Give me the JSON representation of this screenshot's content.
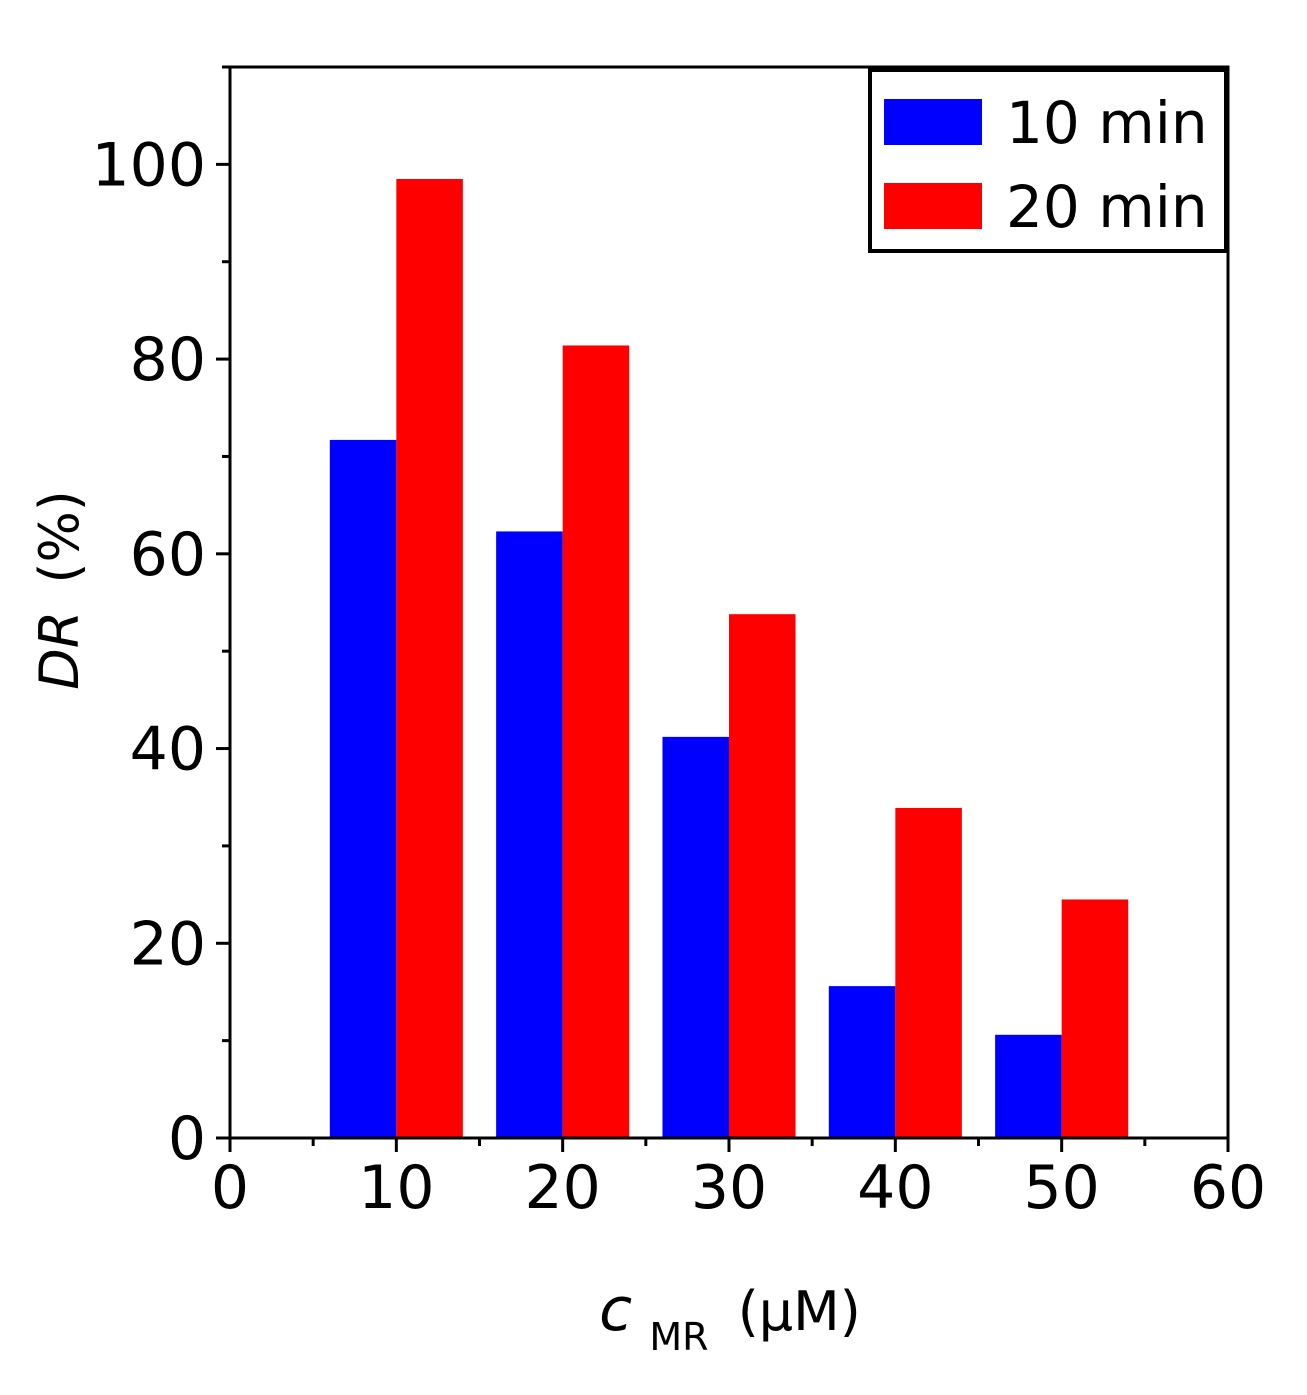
{
  "chart_data": {
    "type": "bar",
    "x_tick_labels": [
      "0",
      "10",
      "20",
      "30",
      "40",
      "50",
      "60"
    ],
    "x_ticks": [
      0,
      10,
      20,
      30,
      40,
      50,
      60
    ],
    "y_tick_labels": [
      "0",
      "20",
      "40",
      "60",
      "80",
      "100"
    ],
    "y_ticks": [
      0,
      20,
      40,
      60,
      80,
      100
    ],
    "xlim": [
      0,
      60
    ],
    "ylim": [
      0,
      110
    ],
    "categories": [
      10,
      20,
      30,
      40,
      50
    ],
    "series": [
      {
        "name": "10 min",
        "color": "#0000ff",
        "values": [
          71.7,
          62.3,
          41.2,
          15.6,
          10.6
        ]
      },
      {
        "name": "20 min",
        "color": "#ff0000",
        "values": [
          98.5,
          81.4,
          53.8,
          33.9,
          24.5
        ]
      }
    ],
    "xlabel": {
      "symbol": "c",
      "subscript": "MR",
      "unit": "(μM)"
    },
    "ylabel": {
      "symbol": "DR",
      "unit": "(%)"
    },
    "legend": "top-right",
    "grid": false
  }
}
